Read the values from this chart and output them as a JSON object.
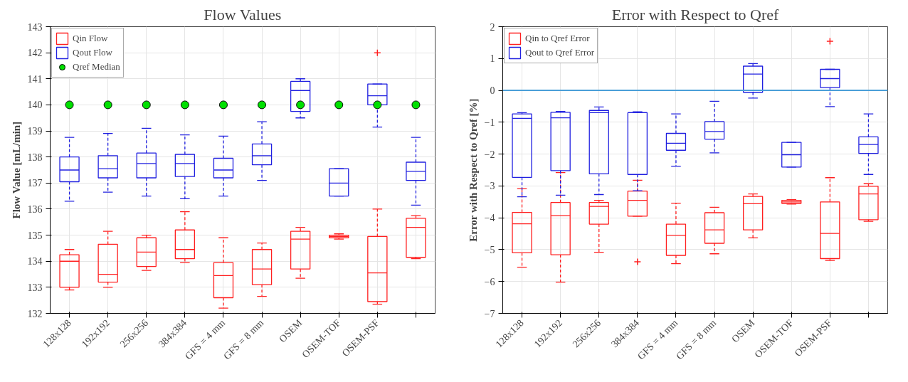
{
  "chart_data": [
    {
      "type": "box",
      "title": "Flow Values",
      "ylabel": "Flow Value [mL/min]",
      "categories": [
        "128x128",
        "192x192",
        "256x256",
        "384x384",
        "GFS = 4 mm",
        "GFS = 8 mm",
        "OSEM",
        "OSEM-TOF",
        "OSEM-PSF",
        null
      ],
      "ylim": [
        132,
        143
      ],
      "yticks": [
        132,
        133,
        134,
        135,
        136,
        137,
        138,
        139,
        140,
        141,
        142,
        143
      ],
      "grid": true,
      "legend": "top left",
      "series": [
        {
          "name": "Qin Flow",
          "color": "#ff2020",
          "boxes": [
            {
              "low": 132.9,
              "q1": 133.0,
              "median": 134.0,
              "q3": 134.25,
              "high": 134.45
            },
            {
              "low": 133.0,
              "q1": 133.2,
              "median": 133.5,
              "q3": 134.65,
              "high": 135.15
            },
            {
              "low": 133.65,
              "q1": 133.8,
              "median": 134.35,
              "q3": 134.9,
              "high": 135.0
            },
            {
              "low": 133.95,
              "q1": 134.1,
              "median": 134.45,
              "q3": 135.2,
              "high": 135.9
            },
            {
              "low": 132.2,
              "q1": 132.6,
              "median": 133.45,
              "q3": 133.95,
              "high": 134.9
            },
            {
              "low": 132.65,
              "q1": 133.1,
              "median": 133.7,
              "q3": 134.45,
              "high": 134.7
            },
            {
              "low": 133.35,
              "q1": 133.7,
              "median": 134.85,
              "q3": 135.15,
              "high": 135.3
            },
            {
              "low": 134.85,
              "q1": 134.9,
              "median": 134.95,
              "q3": 135.0,
              "high": 135.05
            },
            {
              "low": 132.35,
              "q1": 132.45,
              "median": 133.55,
              "q3": 134.95,
              "high": 136.0,
              "outliers": [
                142.0
              ]
            },
            {
              "low": 134.1,
              "q1": 134.15,
              "median": 135.3,
              "q3": 135.65,
              "high": 135.75
            }
          ]
        },
        {
          "name": "Qout Flow",
          "color": "#2020e0",
          "boxes": [
            {
              "low": 136.3,
              "q1": 137.05,
              "median": 137.5,
              "q3": 138.0,
              "high": 138.75
            },
            {
              "low": 136.65,
              "q1": 137.2,
              "median": 137.55,
              "q3": 138.05,
              "high": 138.9
            },
            {
              "low": 136.5,
              "q1": 137.2,
              "median": 137.75,
              "q3": 138.15,
              "high": 139.1
            },
            {
              "low": 136.4,
              "q1": 137.25,
              "median": 137.75,
              "q3": 138.1,
              "high": 138.85
            },
            {
              "low": 136.5,
              "q1": 137.2,
              "median": 137.5,
              "q3": 137.95,
              "high": 138.8
            },
            {
              "low": 137.1,
              "q1": 137.7,
              "median": 138.05,
              "q3": 138.5,
              "high": 139.35
            },
            {
              "low": 139.5,
              "q1": 139.75,
              "median": 140.55,
              "q3": 140.9,
              "high": 141.0
            },
            {
              "low": 136.5,
              "q1": 136.5,
              "median": 137.0,
              "q3": 137.55,
              "high": 137.55
            },
            {
              "low": 139.15,
              "q1": 140.0,
              "median": 140.35,
              "q3": 140.8,
              "high": 140.8
            },
            {
              "low": 136.15,
              "q1": 137.1,
              "median": 137.45,
              "q3": 137.8,
              "high": 138.75
            }
          ]
        },
        {
          "name": "Qref Median",
          "type": "scatter",
          "marker": "circle",
          "color": "#00e000",
          "values": [
            140,
            140,
            140,
            140,
            140,
            140,
            140,
            140,
            140,
            140
          ]
        }
      ]
    },
    {
      "type": "box",
      "title": "Error with Respect to Qref",
      "ylabel": "Error with Respect to Qref [%]",
      "categories": [
        "128x128",
        "192x192",
        "256x256",
        "384x384",
        "GFS = 4 mm",
        "GFS = 8 mm",
        "OSEM",
        "OSEM-TOF",
        "OSEM-PSF",
        null
      ],
      "ylim": [
        -7,
        2
      ],
      "yticks": [
        -7,
        -6,
        -5,
        -4,
        -3,
        -2,
        -1,
        0,
        1,
        2
      ],
      "grid": true,
      "legend": "top left",
      "ref_lines": [
        {
          "axis": "y",
          "value": 0,
          "color": "#4a9fd8"
        }
      ],
      "series": [
        {
          "name": "Qin to Qref Error",
          "color": "#ff2020",
          "boxes": [
            {
              "low": -5.55,
              "q1": -5.1,
              "median": -4.19,
              "q3": -3.83,
              "high": -3.09
            },
            {
              "low": -6.02,
              "q1": -5.16,
              "median": -3.93,
              "q3": -3.52,
              "high": -2.58
            },
            {
              "low": -5.08,
              "q1": -4.2,
              "median": -3.64,
              "q3": -3.52,
              "high": -3.45
            },
            {
              "low": -3.95,
              "q1": -3.95,
              "median": -3.45,
              "q3": -3.16,
              "high": -2.82,
              "outliers": [
                -5.38
              ]
            },
            {
              "low": -5.44,
              "q1": -5.18,
              "median": -4.55,
              "q3": -4.2,
              "high": -3.54
            },
            {
              "low": -5.13,
              "q1": -4.8,
              "median": -4.38,
              "q3": -3.84,
              "high": -3.67
            },
            {
              "low": -4.63,
              "q1": -4.38,
              "median": -3.56,
              "q3": -3.33,
              "high": -3.25
            },
            {
              "low": -3.57,
              "q1": -3.55,
              "median": -3.5,
              "q3": -3.45,
              "high": -3.43
            },
            {
              "low": -5.34,
              "q1": -5.28,
              "median": -4.49,
              "q3": -3.5,
              "high": -2.74,
              "outliers": [
                1.54
              ]
            },
            {
              "low": -4.11,
              "q1": -4.06,
              "median": -3.25,
              "q3": -3.01,
              "high": -2.93
            }
          ]
        },
        {
          "name": "Qout to Qref Error",
          "color": "#2020e0",
          "boxes": [
            {
              "low": -3.34,
              "q1": -2.73,
              "median": -0.88,
              "q3": -0.74,
              "high": -0.7
            },
            {
              "low": -3.29,
              "q1": -2.52,
              "median": -0.86,
              "q3": -0.69,
              "high": -0.66
            },
            {
              "low": -3.27,
              "q1": -2.62,
              "median": -0.7,
              "q3": -0.63,
              "high": -0.52
            },
            {
              "low": -3.15,
              "q1": -2.64,
              "median": -0.7,
              "q3": -0.7,
              "high": -0.67
            },
            {
              "low": -2.38,
              "q1": -1.88,
              "median": -1.66,
              "q3": -1.35,
              "high": -0.74
            },
            {
              "low": -1.96,
              "q1": -1.53,
              "median": -1.29,
              "q3": -0.98,
              "high": -0.34
            },
            {
              "low": -0.24,
              "q1": -0.06,
              "median": 0.51,
              "q3": 0.76,
              "high": 0.84
            },
            {
              "low": -2.41,
              "q1": -2.41,
              "median": -2.02,
              "q3": -1.63,
              "high": -1.63
            },
            {
              "low": -0.51,
              "q1": 0.09,
              "median": 0.37,
              "q3": 0.66,
              "high": 0.66
            },
            {
              "low": -2.64,
              "q1": -1.98,
              "median": -1.7,
              "q3": -1.46,
              "high": -0.74
            }
          ]
        }
      ]
    }
  ]
}
